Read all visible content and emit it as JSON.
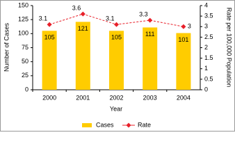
{
  "chart_data": {
    "type": "bar",
    "categories": [
      "2000",
      "2001",
      "2002",
      "2003",
      "2004"
    ],
    "x_label": "Year",
    "y_label": "Number of Cases",
    "y2_label": "Rate per 100,000 Population",
    "ylim": [
      0,
      150
    ],
    "yticks": [
      0,
      25,
      50,
      75,
      100,
      125,
      150
    ],
    "y2lim": [
      0,
      4
    ],
    "y2ticks": [
      0,
      0.5,
      1,
      1.5,
      2,
      2.5,
      3,
      3.5,
      4
    ],
    "legend": "bottom",
    "series": [
      {
        "name": "Cases",
        "type": "bar",
        "color": "#ffcc00",
        "values": [
          105,
          121,
          105,
          111,
          101
        ]
      },
      {
        "name": "Rate",
        "type": "line",
        "axis": "y2",
        "color": "#e8202a",
        "values": [
          3.1,
          3.6,
          3.1,
          3.3,
          3
        ]
      }
    ]
  }
}
